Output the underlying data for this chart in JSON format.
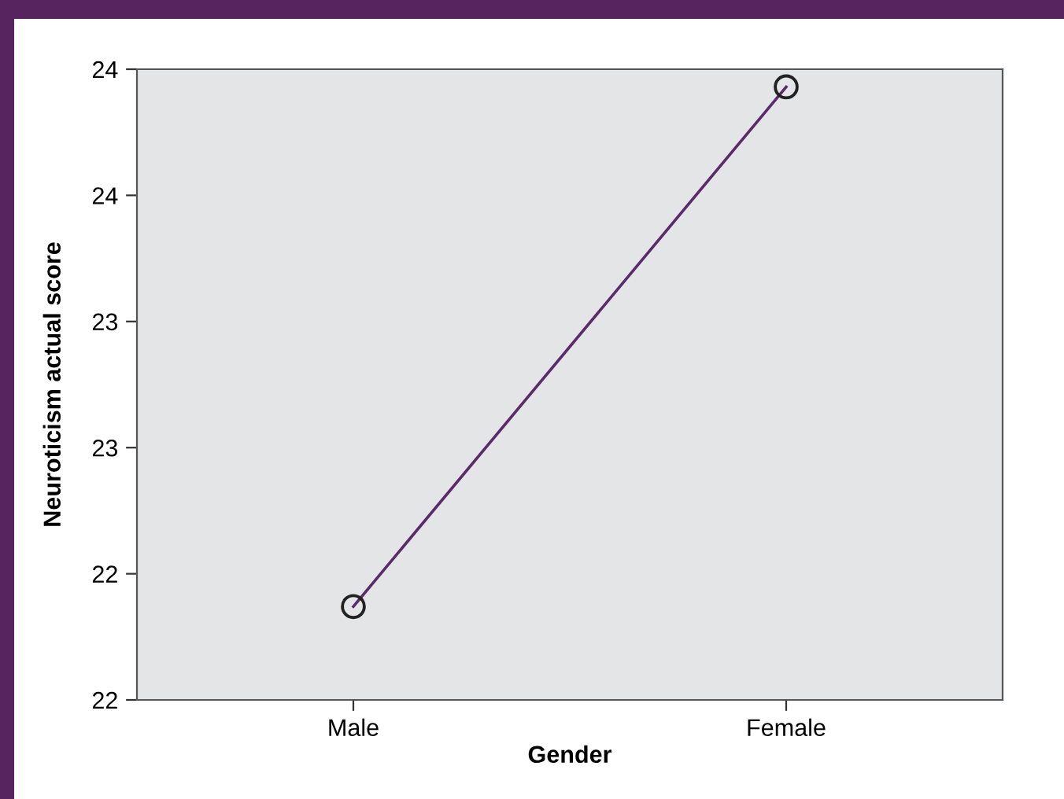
{
  "chart_data": {
    "type": "line",
    "xlabel": "Gender",
    "ylabel": "Neuroticism actual score",
    "categories": [
      "Male",
      "Female"
    ],
    "series": [
      {
        "color": "#5a2a6a",
        "values": [
          22.37,
          24.43
        ]
      }
    ],
    "ylim": [
      22.0,
      24.5
    ],
    "yticks": [
      {
        "value": 22.0,
        "label": "22"
      },
      {
        "value": 22.5,
        "label": "22"
      },
      {
        "value": 23.0,
        "label": "23"
      },
      {
        "value": 23.5,
        "label": "23"
      },
      {
        "value": 24.0,
        "label": "24"
      },
      {
        "value": 24.5,
        "label": "24"
      }
    ],
    "marker": "circle",
    "line_style": "solid",
    "grid": false
  }
}
